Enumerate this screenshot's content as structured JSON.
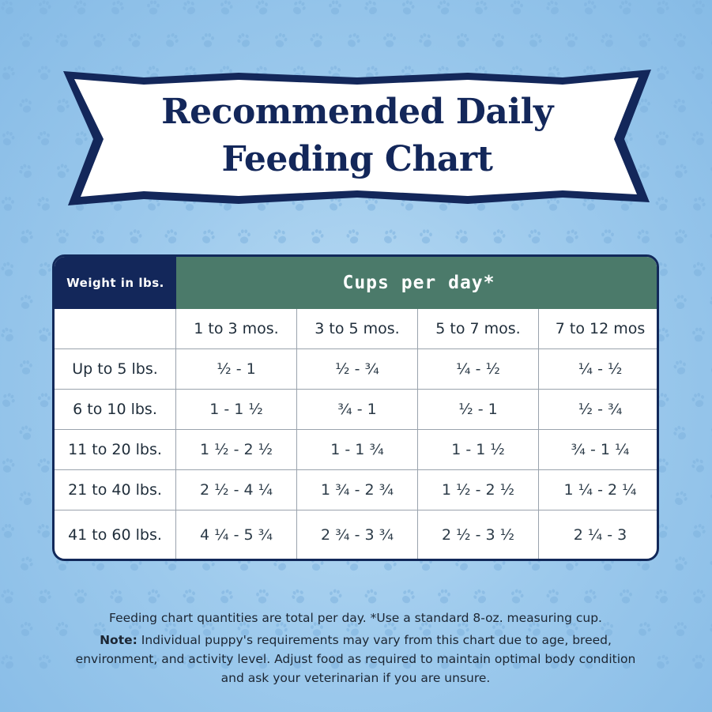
{
  "title": {
    "line1": "Recommended Daily",
    "line2": "Feeding Chart"
  },
  "table": {
    "weight_header": "Weight in lbs.",
    "cups_header": "Cups per day*",
    "columns": [
      "1 to 3 mos.",
      "3 to 5 mos.",
      "5 to 7 mos.",
      "7 to 12 mos"
    ],
    "rows": [
      {
        "weight": "Up to 5 lbs.",
        "values": [
          "½ - 1",
          "½ - ¾",
          "¼ - ½",
          "¼ - ½"
        ]
      },
      {
        "weight": "6 to 10 lbs.",
        "values": [
          "1 - 1 ½",
          "¾ - 1",
          "½ - 1",
          "½ - ¾"
        ]
      },
      {
        "weight": "11 to 20 lbs.",
        "values": [
          "1 ½ - 2 ½",
          "1 - 1 ¾",
          "1 - 1 ½",
          "¾ - 1 ¼"
        ]
      },
      {
        "weight": "21 to 40 lbs.",
        "values": [
          "2 ½ - 4 ¼",
          "1 ¾ - 2 ¾",
          "1 ½ - 2 ½",
          "1 ¼ - 2 ¼"
        ]
      },
      {
        "weight": "41 to 60 lbs.",
        "values": [
          "4 ¼ - 5 ¾",
          "2 ¾ - 3 ¾",
          "2 ½ - 3 ½",
          "2 ¼ - 3"
        ]
      }
    ]
  },
  "footer": {
    "line1": "Feeding chart quantities are total per day. *Use a standard 8-oz. measuring cup.",
    "note_label": "Note:",
    "note_text": " Individual puppy's requirements may vary from this chart due to age, breed, environment, and activity level. Adjust food as required to maintain optimal body condition and ask your veterinarian if you are unsure."
  },
  "colors": {
    "navy": "#13275a",
    "green_header": "#4b7a6a",
    "background": "#9fcbed",
    "paw_print": "#7fb3df"
  },
  "decorations": {
    "background_pattern": "paw-print-icon"
  }
}
